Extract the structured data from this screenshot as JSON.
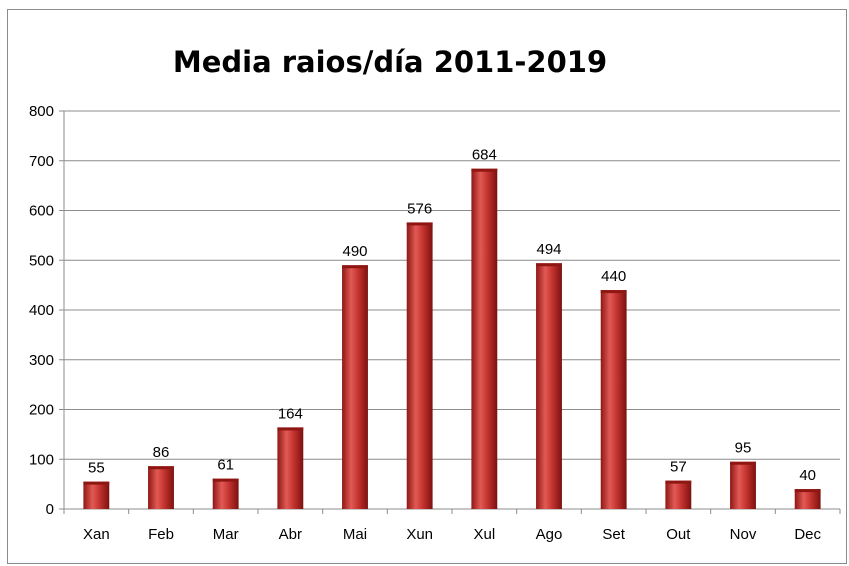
{
  "chart_data": {
    "type": "bar",
    "title": "Media raios/día 2011-2019",
    "xlabel": "",
    "ylabel": "",
    "categories": [
      "Xan",
      "Feb",
      "Mar",
      "Abr",
      "Mai",
      "Xun",
      "Xul",
      "Ago",
      "Set",
      "Out",
      "Nov",
      "Dec"
    ],
    "values": [
      55,
      86,
      61,
      164,
      490,
      576,
      684,
      494,
      440,
      57,
      95,
      40
    ],
    "ylim": [
      0,
      800
    ],
    "yticks": [
      0,
      100,
      200,
      300,
      400,
      500,
      600,
      700,
      800
    ],
    "grid": true,
    "legend": "none",
    "colors": {
      "bar": "#c0302c",
      "bar_light": "#e25a55",
      "bar_dark": "#8e1714",
      "grid": "#8c8c8c"
    }
  }
}
